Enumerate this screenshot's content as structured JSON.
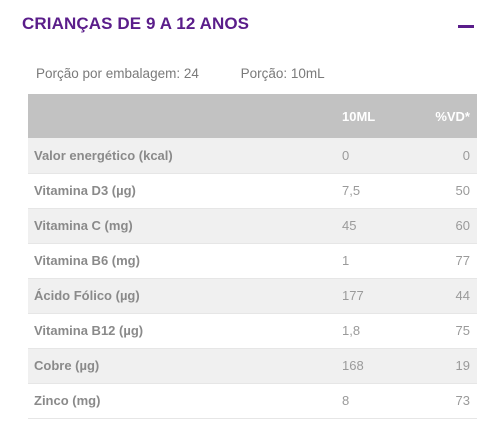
{
  "header": {
    "title": "CRIANÇAS DE 9 A 12 ANOS",
    "collapse_icon": "minus-icon",
    "accent_color": "#5a1d8a"
  },
  "portion": {
    "servings_per_package": "Porção por embalagem: 24",
    "serving_size": "Porção: 10mL"
  },
  "table": {
    "header_bg": "#c2c2c2",
    "columns": [
      "",
      "10ML",
      "%VD*"
    ],
    "rows": [
      {
        "nutrient": "Valor energético (kcal)",
        "amount": "0",
        "vd": "0"
      },
      {
        "nutrient": "Vitamina D3 (µg)",
        "amount": "7,5",
        "vd": "50"
      },
      {
        "nutrient": "Vitamina C (mg)",
        "amount": "45",
        "vd": "60"
      },
      {
        "nutrient": "Vitamina B6 (mg)",
        "amount": "1",
        "vd": "77"
      },
      {
        "nutrient": "Ácido Fólico (µg)",
        "amount": "177",
        "vd": "44"
      },
      {
        "nutrient": "Vitamina B12 (µg)",
        "amount": "1,8",
        "vd": "75"
      },
      {
        "nutrient": "Cobre (µg)",
        "amount": "168",
        "vd": "19"
      },
      {
        "nutrient": "Zinco (mg)",
        "amount": "8",
        "vd": "73"
      }
    ]
  }
}
